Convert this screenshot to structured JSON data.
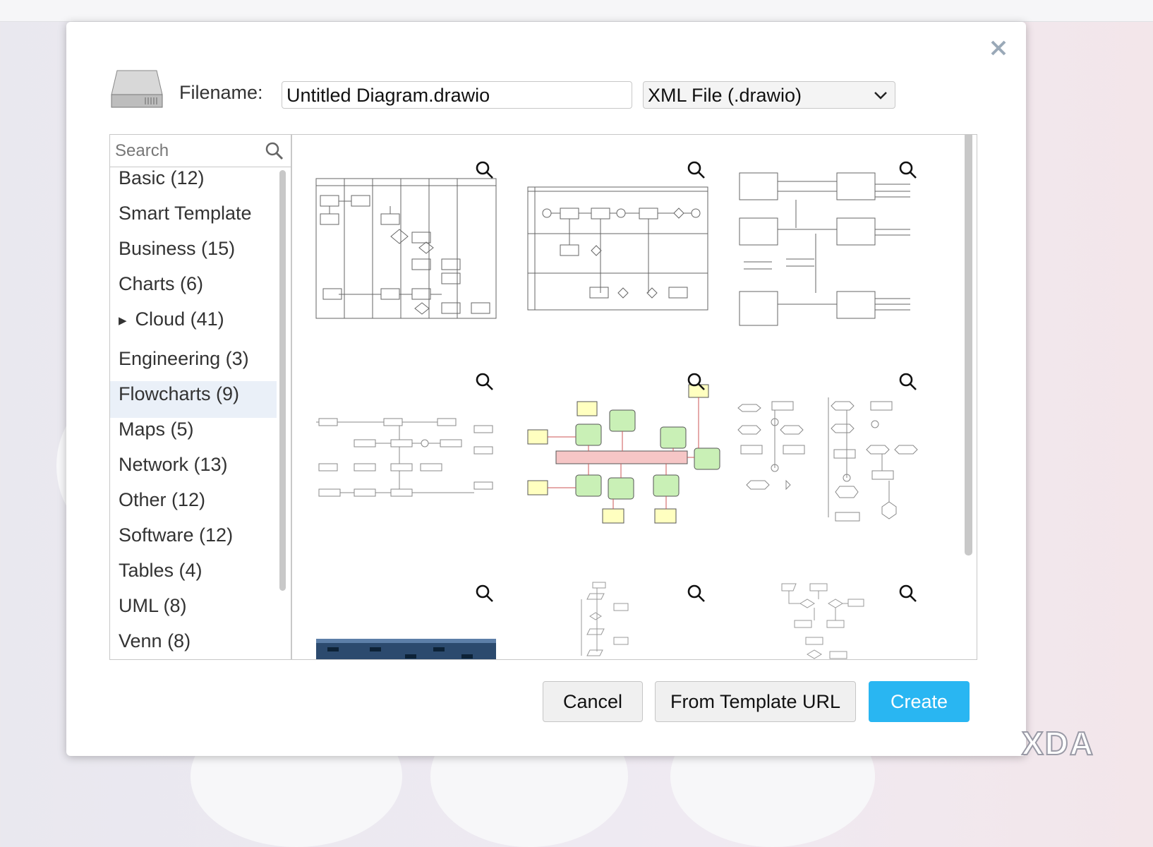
{
  "header": {
    "filename_label": "Filename:",
    "filename": "Untitled Diagram.drawio",
    "file_type": "XML File (.drawio)"
  },
  "sidebar": {
    "search_placeholder": "Search",
    "categories": [
      "Basic (12)",
      "Smart Template",
      "Business (15)",
      "Charts (6)",
      "Cloud (41)",
      "Engineering (3)",
      "Flowcharts (9)",
      "Maps (5)",
      "Network (13)",
      "Other (12)",
      "Software (12)",
      "Tables (4)",
      "UML (8)",
      "Venn (8)"
    ]
  },
  "buttons": {
    "cancel": "Cancel",
    "template_url": "From Template URL",
    "create": "Create"
  },
  "watermark": "XDA"
}
